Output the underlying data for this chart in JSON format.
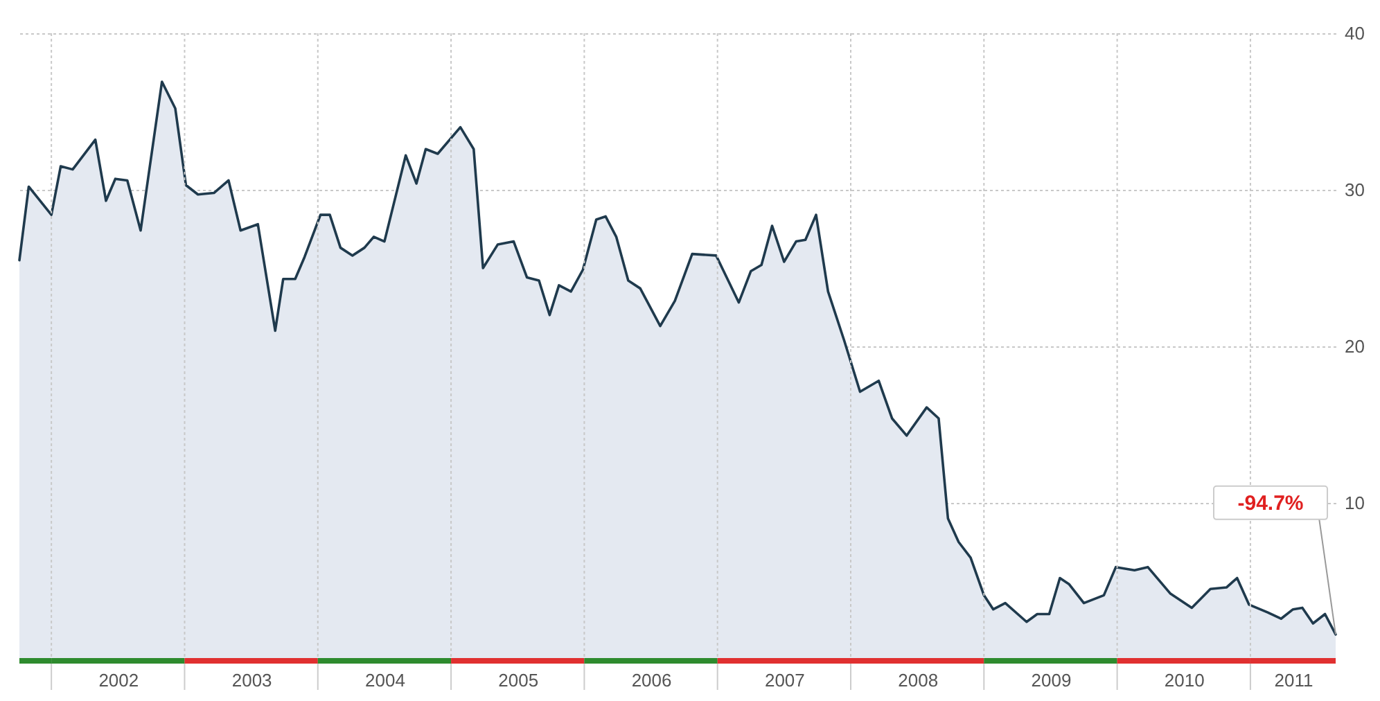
{
  "chart_data": {
    "type": "area",
    "x": [
      2001.76,
      2001.83,
      2002.0,
      2002.07,
      2002.16,
      2002.33,
      2002.41,
      2002.48,
      2002.57,
      2002.67,
      2002.83,
      2002.93,
      2003.01,
      2003.1,
      2003.22,
      2003.33,
      2003.42,
      2003.55,
      2003.68,
      2003.74,
      2003.83,
      2003.9,
      2004.02,
      2004.09,
      2004.17,
      2004.26,
      2004.35,
      2004.42,
      2004.5,
      2004.66,
      2004.74,
      2004.81,
      2004.9,
      2005.07,
      2005.17,
      2005.24,
      2005.35,
      2005.47,
      2005.57,
      2005.66,
      2005.74,
      2005.81,
      2005.9,
      2005.99,
      2006.09,
      2006.16,
      2006.24,
      2006.33,
      2006.42,
      2006.57,
      2006.68,
      2006.81,
      2006.99,
      2007.16,
      2007.25,
      2007.33,
      2007.41,
      2007.5,
      2007.59,
      2007.66,
      2007.74,
      2007.83,
      2007.95,
      2008.07,
      2008.21,
      2008.31,
      2008.42,
      2008.57,
      2008.66,
      2008.73,
      2008.81,
      2008.9,
      2009.0,
      2009.07,
      2009.16,
      2009.32,
      2009.4,
      2009.49,
      2009.57,
      2009.64,
      2009.75,
      2009.9,
      2009.99,
      2010.13,
      2010.23,
      2010.4,
      2010.56,
      2010.7,
      2010.82,
      2010.9,
      2010.99,
      2011.13,
      2011.23,
      2011.32,
      2011.39,
      2011.47,
      2011.56,
      2011.64
    ],
    "series": [
      {
        "color": "#1f3a4d",
        "values": [
          25.5,
          30.2,
          28.4,
          31.5,
          31.3,
          33.2,
          29.3,
          30.7,
          30.6,
          27.4,
          36.9,
          35.2,
          30.3,
          29.7,
          29.8,
          30.6,
          27.4,
          27.8,
          21.0,
          24.3,
          24.3,
          25.7,
          28.4,
          28.4,
          26.3,
          25.8,
          26.3,
          27.0,
          26.7,
          32.2,
          30.4,
          32.6,
          32.3,
          34.0,
          32.6,
          25.0,
          26.5,
          26.7,
          24.4,
          24.2,
          22.0,
          23.9,
          23.5,
          24.9,
          28.1,
          28.3,
          27.0,
          24.2,
          23.7,
          21.3,
          22.9,
          25.9,
          25.8,
          22.8,
          24.8,
          25.2,
          27.7,
          25.4,
          26.7,
          26.8,
          28.4,
          23.5,
          20.4,
          17.1,
          17.8,
          15.4,
          14.3,
          16.1,
          15.4,
          9.0,
          7.5,
          6.5,
          4.1,
          3.2,
          3.6,
          2.4,
          2.9,
          2.9,
          5.2,
          4.8,
          3.6,
          4.1,
          5.9,
          5.7,
          5.9,
          4.2,
          3.3,
          4.5,
          4.6,
          5.2,
          3.5,
          3.0,
          2.6,
          3.2,
          3.3,
          2.3,
          2.9,
          1.6
        ]
      }
    ],
    "xlim": [
      2001.76,
      2011.64
    ],
    "xticks": [
      {
        "value": 2002,
        "label": null
      },
      {
        "value": 2002.5,
        "label": "2002"
      },
      {
        "value": 2003,
        "label": null
      },
      {
        "value": 2003.5,
        "label": "2003"
      },
      {
        "value": 2004,
        "label": null
      },
      {
        "value": 2004.5,
        "label": "2004"
      },
      {
        "value": 2005,
        "label": null
      },
      {
        "value": 2005.5,
        "label": "2005"
      },
      {
        "value": 2006,
        "label": null
      },
      {
        "value": 2006.5,
        "label": "2006"
      },
      {
        "value": 2007,
        "label": null
      },
      {
        "value": 2007.5,
        "label": "2007"
      },
      {
        "value": 2008,
        "label": null
      },
      {
        "value": 2008.5,
        "label": "2008"
      },
      {
        "value": 2009,
        "label": null
      },
      {
        "value": 2009.5,
        "label": "2009"
      },
      {
        "value": 2010,
        "label": null
      },
      {
        "value": 2010.5,
        "label": "2010"
      },
      {
        "value": 2011,
        "label": null
      },
      {
        "value": 2011.32,
        "label": "2011"
      }
    ],
    "ylim": [
      0,
      40
    ],
    "yticks": [
      10,
      20,
      30,
      40
    ],
    "grid": true,
    "annotations": [
      {
        "text": "-94.7%",
        "x": 2011.64,
        "y": 1.6
      }
    ]
  }
}
